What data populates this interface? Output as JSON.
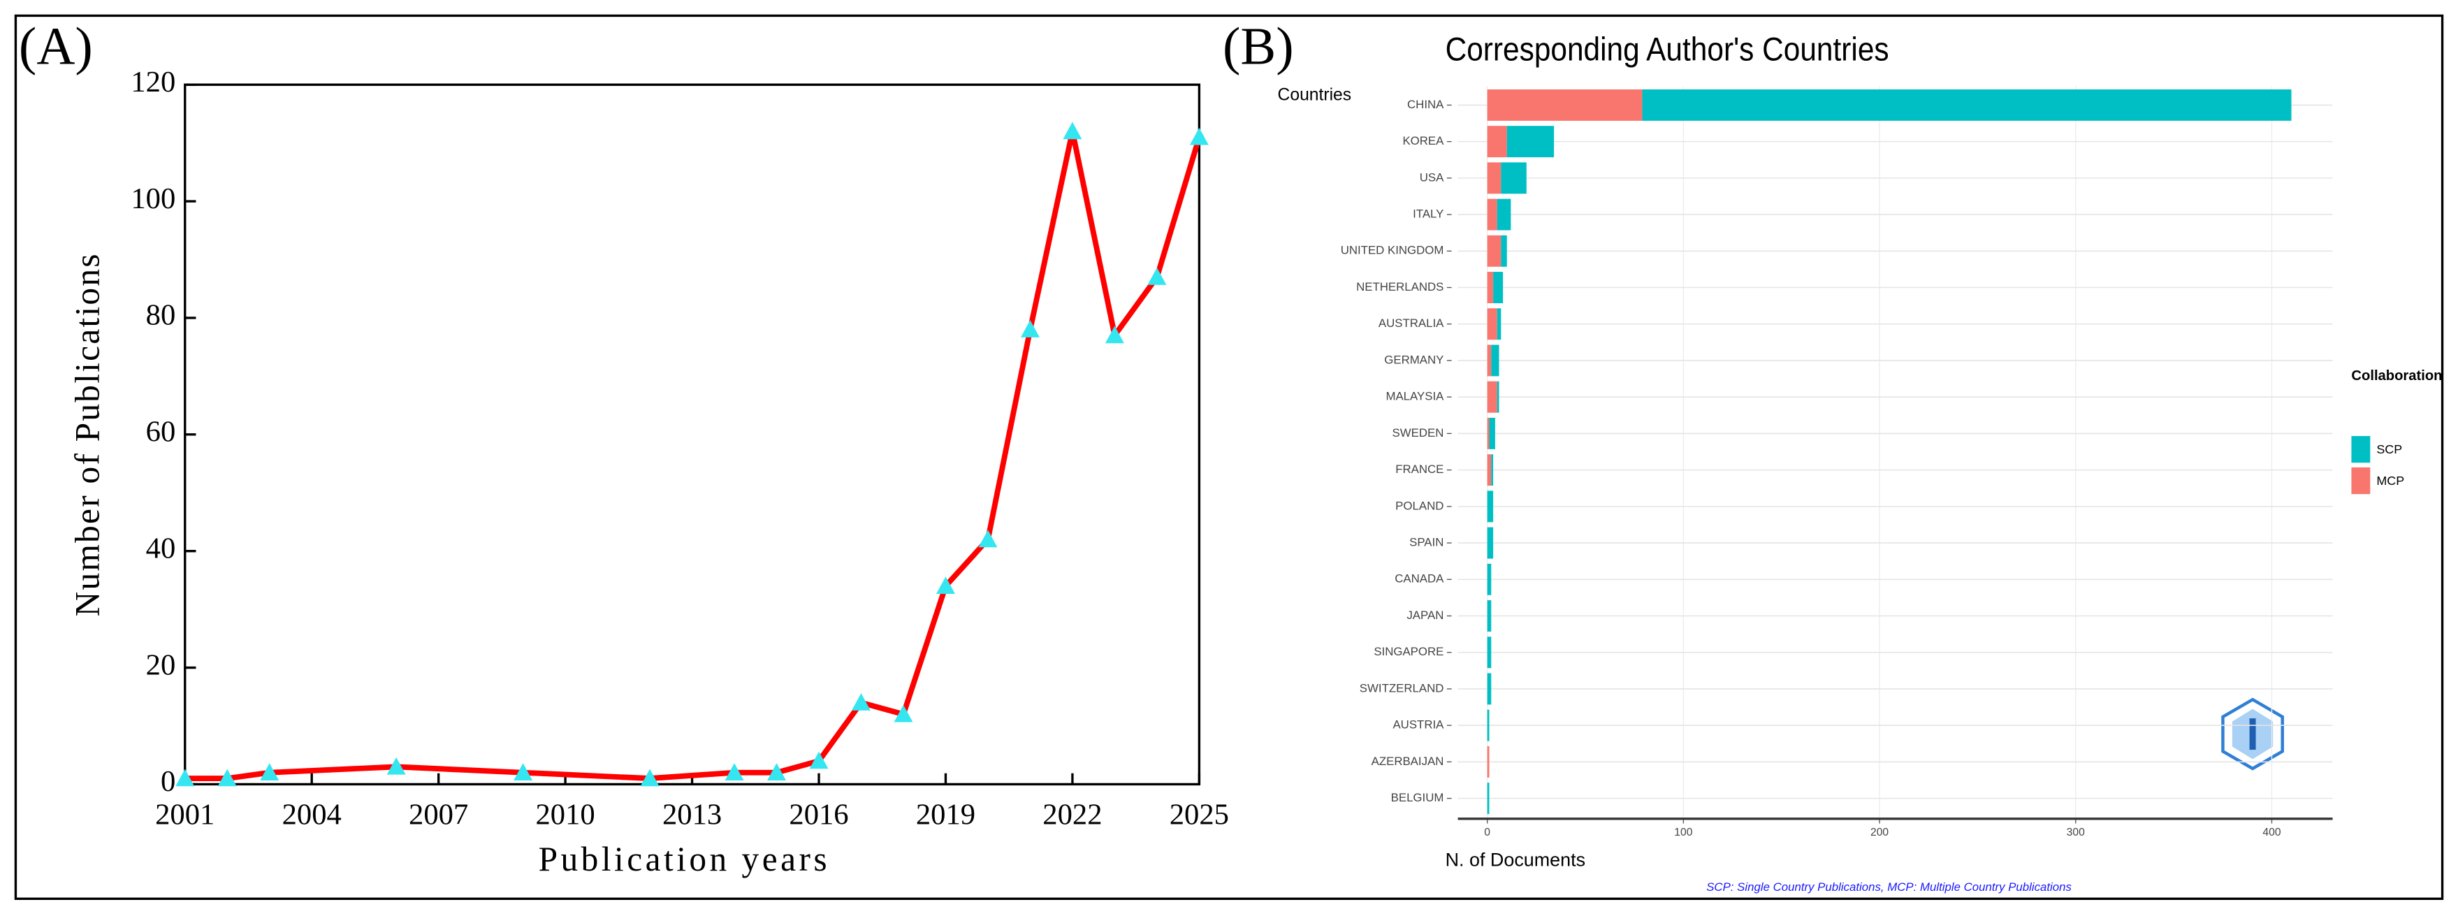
{
  "chart_data": [
    {
      "type": "line",
      "panel_label": "(A)",
      "xlabel": "Publication years",
      "ylabel": "Number of Publications",
      "x": [
        2001,
        2002,
        2003,
        2006,
        2009,
        2012,
        2014,
        2015,
        2016,
        2017,
        2018,
        2019,
        2020,
        2021,
        2022,
        2023,
        2024,
        2025
      ],
      "values": [
        1,
        1,
        2,
        3,
        2,
        1,
        2,
        2,
        4,
        14,
        12,
        34,
        42,
        78,
        112,
        77,
        87,
        111
      ],
      "color": "#ff0000",
      "marker_color": "#33e6f0",
      "xlim": [
        2001,
        2025
      ],
      "xticks": [
        2001,
        2004,
        2007,
        2010,
        2013,
        2016,
        2019,
        2022,
        2025
      ],
      "ylim": [
        0,
        120
      ],
      "yticks": [
        0,
        20,
        40,
        60,
        80,
        100,
        120
      ]
    },
    {
      "type": "hbar-stacked",
      "panel_label": "(B)",
      "title": "Corresponding Author's Countries",
      "ylabel": "Countries",
      "xlabel": "N. of Documents",
      "legend_title": "Collaboration",
      "legend": "right",
      "caption": "SCP: Single Country Publications, MCP: Multiple Country Publications",
      "categories": [
        "CHINA",
        "KOREA",
        "USA",
        "ITALY",
        "UNITED KINGDOM",
        "NETHERLANDS",
        "AUSTRALIA",
        "GERMANY",
        "MALAYSIA",
        "SWEDEN",
        "FRANCE",
        "POLAND",
        "SPAIN",
        "CANADA",
        "JAPAN",
        "SINGAPORE",
        "SWITZERLAND",
        "AUSTRIA",
        "AZERBAIJAN",
        "BELGIUM"
      ],
      "series": [
        {
          "name": "SCP",
          "color": "#00bfc4",
          "values": [
            331,
            24,
            13,
            7,
            3,
            5,
            2,
            4,
            1,
            3,
            1,
            3,
            3,
            2,
            2,
            2,
            2,
            1,
            0,
            1
          ]
        },
        {
          "name": "MCP",
          "color": "#f8766d",
          "values": [
            79,
            10,
            7,
            5,
            7,
            3,
            5,
            2,
            5,
            1,
            2,
            0,
            0,
            0,
            0,
            0,
            0,
            0,
            1,
            0
          ]
        }
      ],
      "xlim": [
        -15,
        431
      ],
      "xticks": [
        0,
        100,
        200,
        300,
        400
      ],
      "grid": true
    }
  ]
}
